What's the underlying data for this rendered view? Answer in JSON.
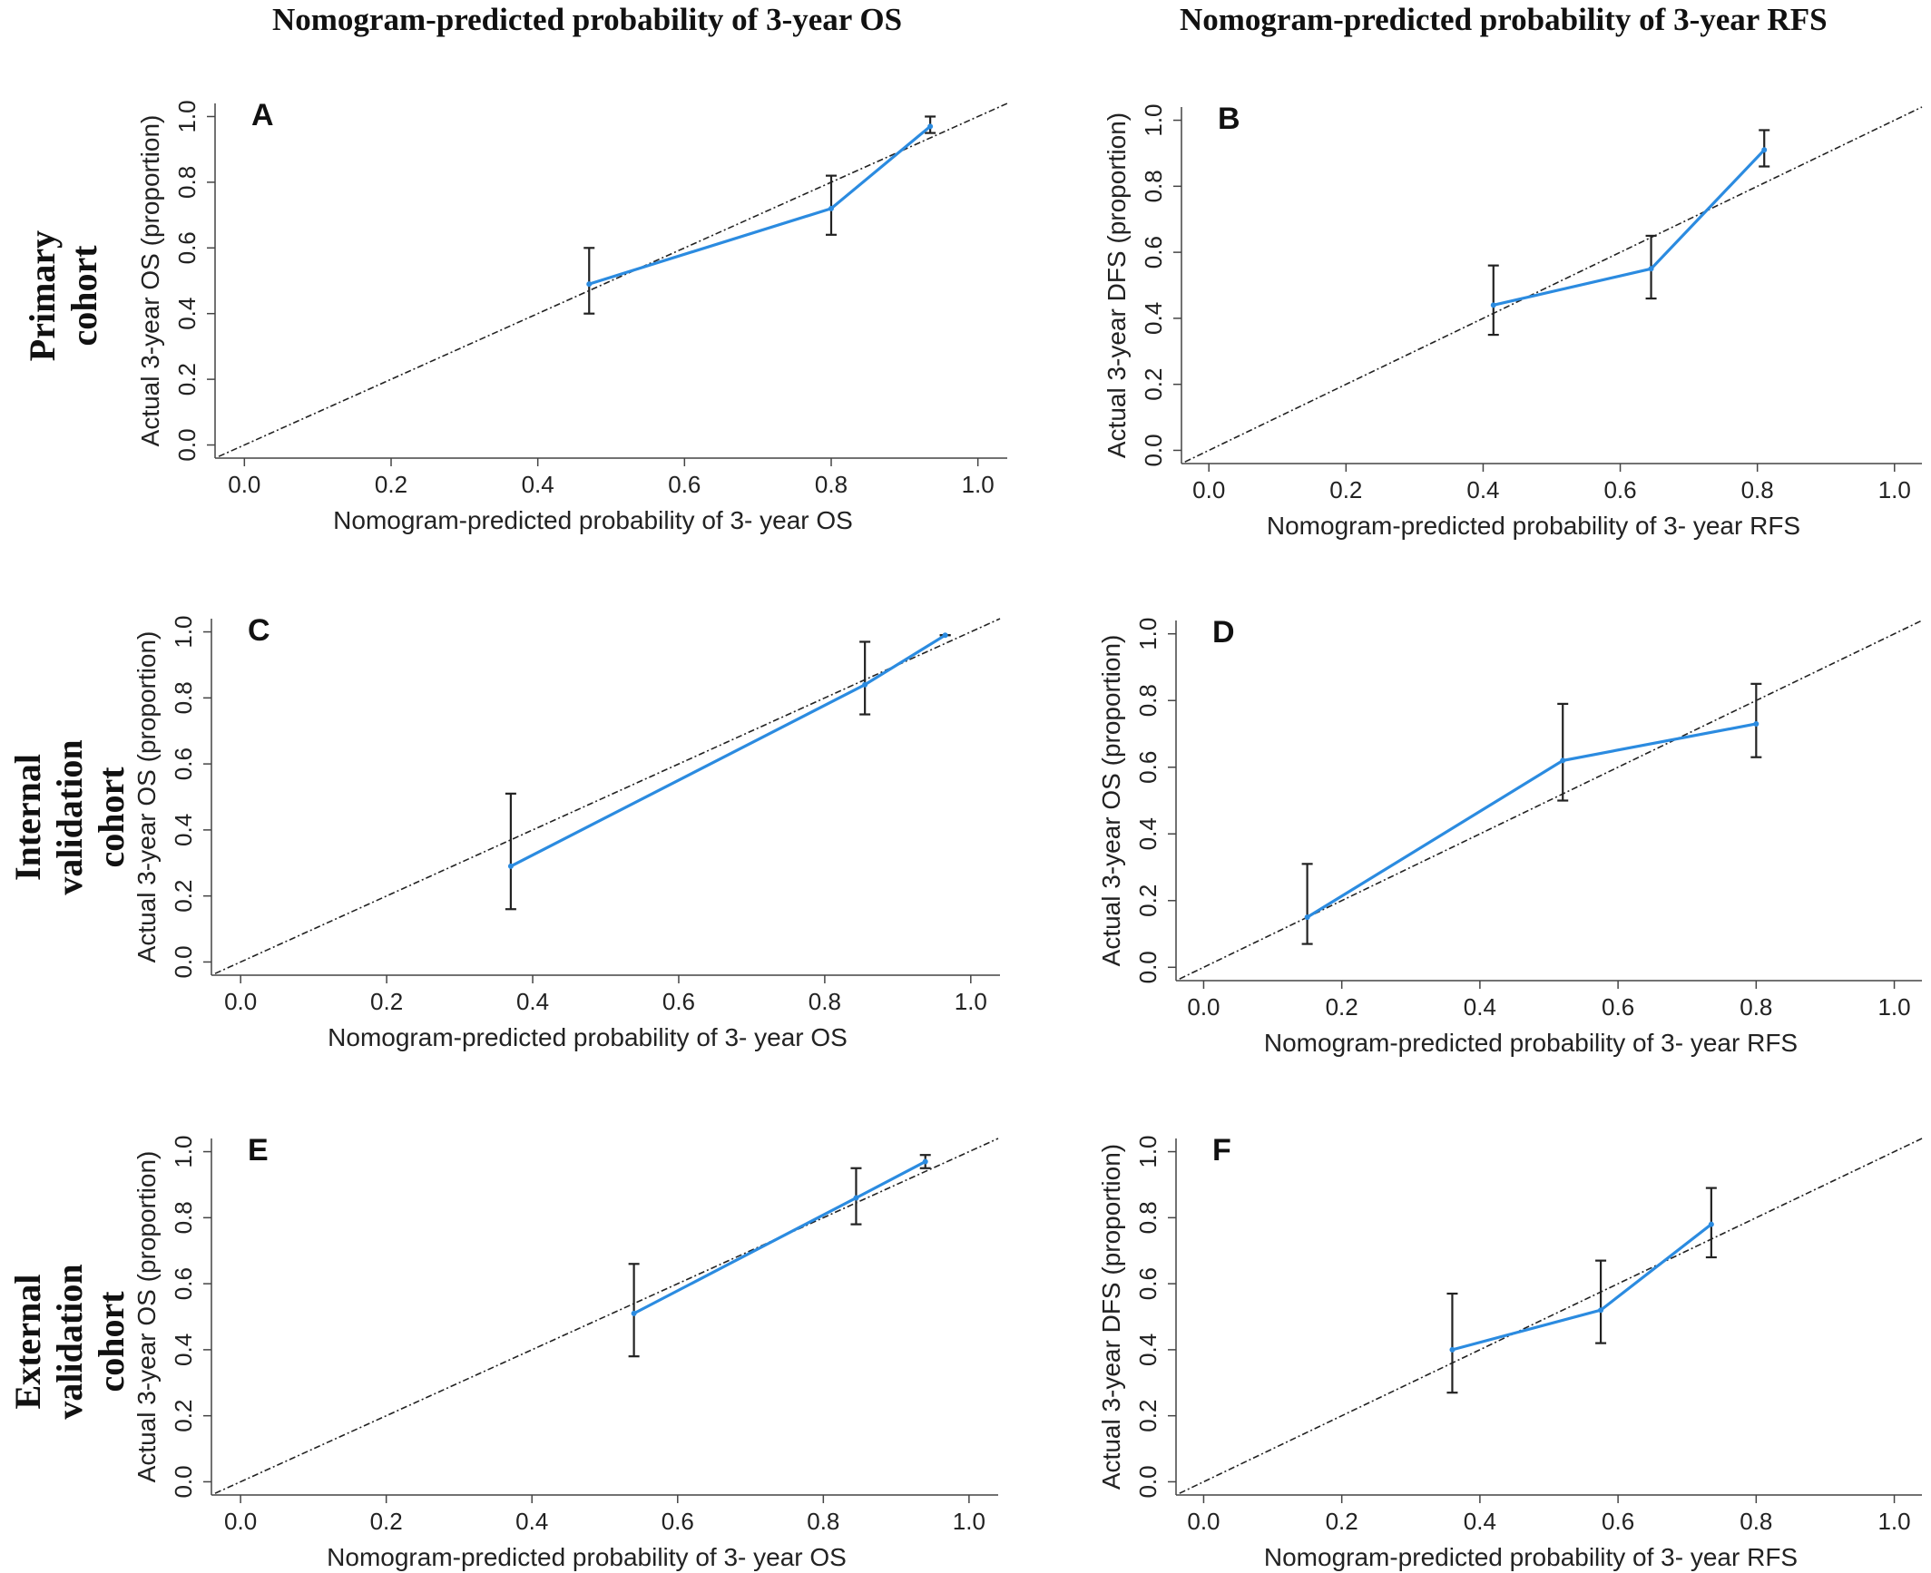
{
  "column_headers": [
    "Nomogram-predicted probability of 3-year OS",
    "Nomogram-predicted probability of 3-year RFS"
  ],
  "row_labels": [
    [
      "Primary",
      "cohort"
    ],
    [
      "Internal",
      "validation",
      "cohort"
    ],
    [
      "External",
      "validation",
      "cohort"
    ]
  ],
  "colors": {
    "calibration_line": "#2b8be0",
    "error_bar": "#222222",
    "reference_line": "#222222"
  },
  "chart_data": [
    {
      "type": "line",
      "panel": "A",
      "xlabel": "Nomogram-predicted probability of 3- year OS",
      "ylabel": "Actual 3-year OS (proportion)",
      "xlim": [
        0,
        1
      ],
      "ylim": [
        0,
        1
      ],
      "xticks": [
        "0.0",
        "0.2",
        "0.4",
        "0.6",
        "0.8",
        "1.0"
      ],
      "yticks": [
        "0.0",
        "0.2",
        "0.4",
        "0.6",
        "0.8",
        "1.0"
      ],
      "reference_line": "y = x",
      "points": [
        {
          "x": 0.47,
          "y": 0.49,
          "lo": 0.4,
          "hi": 0.6
        },
        {
          "x": 0.8,
          "y": 0.72,
          "lo": 0.64,
          "hi": 0.82
        },
        {
          "x": 0.935,
          "y": 0.97,
          "lo": 0.95,
          "hi": 1.0
        }
      ]
    },
    {
      "type": "line",
      "panel": "B",
      "xlabel": "Nomogram-predicted probability of 3- year RFS",
      "ylabel": "Actual 3-year DFS (proportion)",
      "xlim": [
        0,
        1
      ],
      "ylim": [
        0,
        1
      ],
      "xticks": [
        "0.0",
        "0.2",
        "0.4",
        "0.6",
        "0.8",
        "1.0"
      ],
      "yticks": [
        "0.0",
        "0.2",
        "0.4",
        "0.6",
        "0.8",
        "1.0"
      ],
      "reference_line": "y = x",
      "points": [
        {
          "x": 0.415,
          "y": 0.44,
          "lo": 0.35,
          "hi": 0.56
        },
        {
          "x": 0.645,
          "y": 0.55,
          "lo": 0.46,
          "hi": 0.65
        },
        {
          "x": 0.81,
          "y": 0.91,
          "lo": 0.86,
          "hi": 0.97
        }
      ]
    },
    {
      "type": "line",
      "panel": "C",
      "xlabel": "Nomogram-predicted probability of 3- year OS",
      "ylabel": "Actual 3-year OS (proportion)",
      "xlim": [
        0,
        1
      ],
      "ylim": [
        0,
        1
      ],
      "xticks": [
        "0.0",
        "0.2",
        "0.4",
        "0.6",
        "0.8",
        "1.0"
      ],
      "yticks": [
        "0.0",
        "0.2",
        "0.4",
        "0.6",
        "0.8",
        "1.0"
      ],
      "reference_line": "y = x",
      "points": [
        {
          "x": 0.37,
          "y": 0.29,
          "lo": 0.16,
          "hi": 0.51
        },
        {
          "x": 0.855,
          "y": 0.84,
          "lo": 0.75,
          "hi": 0.97
        },
        {
          "x": 0.965,
          "y": 0.99,
          "lo": 0.99,
          "hi": 0.99
        }
      ]
    },
    {
      "type": "line",
      "panel": "D",
      "xlabel": "Nomogram-predicted probability of 3- year RFS",
      "ylabel": "Actual 3-year OS (proportion)",
      "xlim": [
        0,
        1
      ],
      "ylim": [
        0,
        1
      ],
      "xticks": [
        "0.0",
        "0.2",
        "0.4",
        "0.6",
        "0.8",
        "1.0"
      ],
      "yticks": [
        "0.0",
        "0.2",
        "0.4",
        "0.6",
        "0.8",
        "1.0"
      ],
      "reference_line": "y = x",
      "points": [
        {
          "x": 0.15,
          "y": 0.15,
          "lo": 0.07,
          "hi": 0.31
        },
        {
          "x": 0.52,
          "y": 0.62,
          "lo": 0.5,
          "hi": 0.79
        },
        {
          "x": 0.8,
          "y": 0.73,
          "lo": 0.63,
          "hi": 0.85
        }
      ]
    },
    {
      "type": "line",
      "panel": "E",
      "xlabel": "Nomogram-predicted probability of 3- year OS",
      "ylabel": "Actual 3-year OS (proportion)",
      "xlim": [
        0,
        1
      ],
      "ylim": [
        0,
        1
      ],
      "xticks": [
        "0.0",
        "0.2",
        "0.4",
        "0.6",
        "0.8",
        "1.0"
      ],
      "yticks": [
        "0.0",
        "0.2",
        "0.4",
        "0.6",
        "0.8",
        "1.0"
      ],
      "reference_line": "y = x",
      "points": [
        {
          "x": 0.54,
          "y": 0.51,
          "lo": 0.38,
          "hi": 0.66
        },
        {
          "x": 0.845,
          "y": 0.86,
          "lo": 0.78,
          "hi": 0.95
        },
        {
          "x": 0.94,
          "y": 0.97,
          "lo": 0.95,
          "hi": 0.99
        }
      ]
    },
    {
      "type": "line",
      "panel": "F",
      "xlabel": "Nomogram-predicted probability of 3- year RFS",
      "ylabel": "Actual 3-year DFS (proportion)",
      "xlim": [
        0,
        1
      ],
      "ylim": [
        0,
        1
      ],
      "xticks": [
        "0.0",
        "0.2",
        "0.4",
        "0.6",
        "0.8",
        "1.0"
      ],
      "yticks": [
        "0.0",
        "0.2",
        "0.4",
        "0.6",
        "0.8",
        "1.0"
      ],
      "reference_line": "y = x",
      "points": [
        {
          "x": 0.36,
          "y": 0.4,
          "lo": 0.27,
          "hi": 0.57
        },
        {
          "x": 0.575,
          "y": 0.52,
          "lo": 0.42,
          "hi": 0.67
        },
        {
          "x": 0.735,
          "y": 0.78,
          "lo": 0.68,
          "hi": 0.89
        }
      ]
    }
  ]
}
